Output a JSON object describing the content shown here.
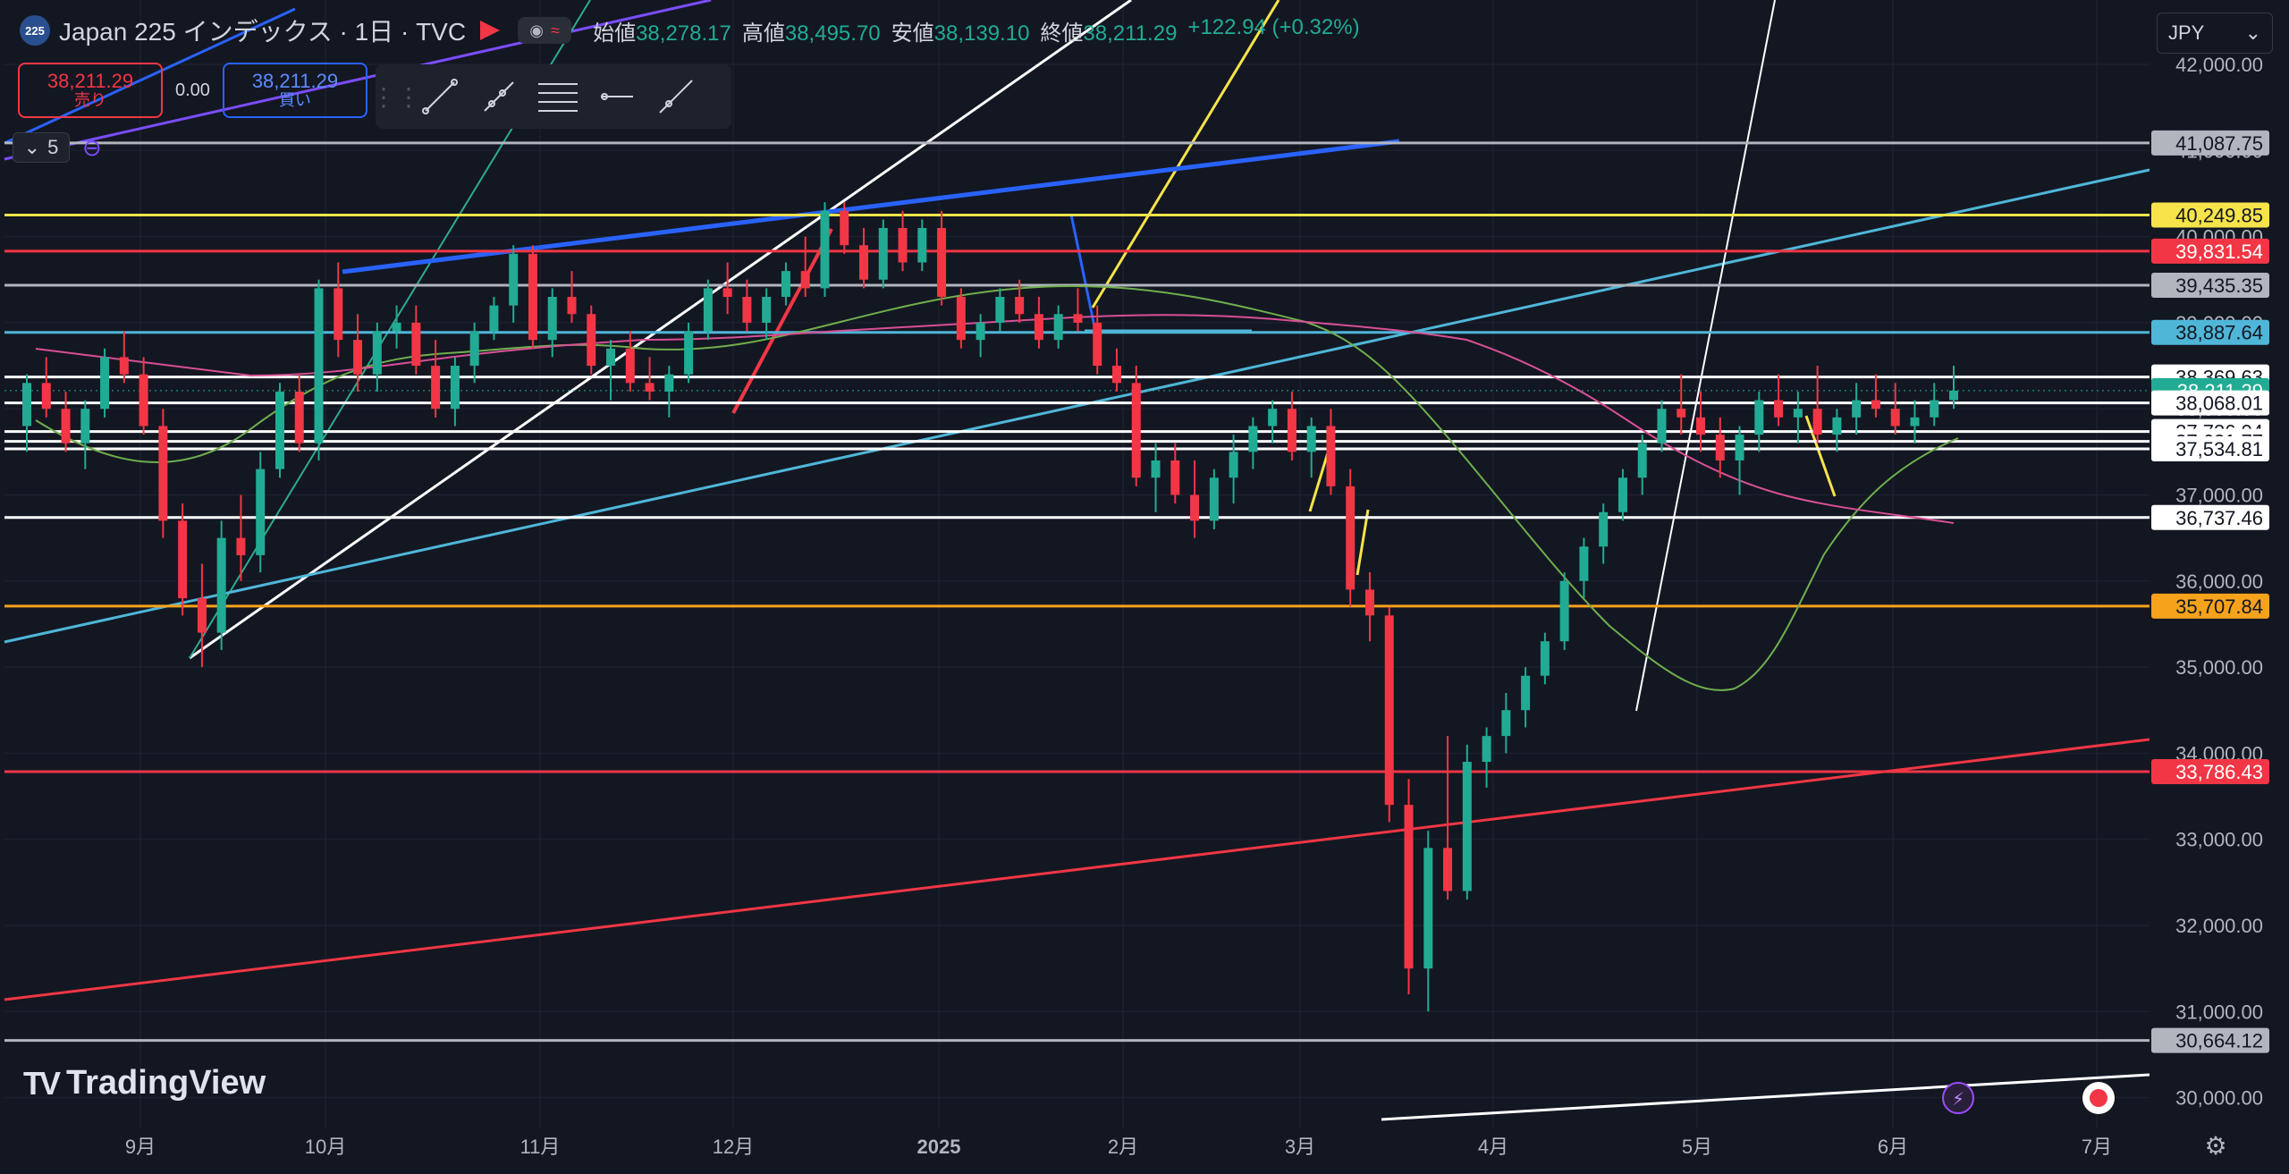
{
  "header": {
    "symbol_badge": "225",
    "title": "Japan 225 インデックス · 1日 · TVC",
    "ohlc": [
      {
        "label": "始値",
        "value": "38,278.17"
      },
      {
        "label": "高値",
        "value": "38,495.70"
      },
      {
        "label": "安値",
        "value": "38,139.10"
      },
      {
        "label": "終値",
        "value": "38,211.29"
      }
    ],
    "change": "+122.94 (+0.32%)"
  },
  "trade": {
    "sell_price": "38,211.29",
    "sell_label": "売り",
    "spread": "0.00",
    "buy_price": "38,211.29",
    "buy_label": "買い"
  },
  "indicators": {
    "count": "5"
  },
  "currency": {
    "selected": "JPY"
  },
  "branding": {
    "logo_text": "TradingView"
  },
  "colors": {
    "background": "#131722",
    "up": "#22ab94",
    "down": "#f23645",
    "grid": "#1f2433"
  },
  "chart_data": {
    "type": "candlestick",
    "x_ticks": [
      "9月",
      "10月",
      "11月",
      "12月",
      "2025",
      "2月",
      "3月",
      "4月",
      "5月",
      "6月",
      "7月"
    ],
    "y_ticks": [
      "42,000.00",
      "41,000.00",
      "40,000.00",
      "39,000.00",
      "38,000.00",
      "37,000.00",
      "36,000.00",
      "35,000.00",
      "34,000.00",
      "33,000.00",
      "32,000.00",
      "31,000.00",
      "30,000.00"
    ],
    "ylim": [
      29800,
      42100
    ],
    "last_price": "38,211.29",
    "horizontal_levels": [
      {
        "value": 41087.75,
        "label": "41,087.75",
        "color": "#b2b5be"
      },
      {
        "value": 40249.85,
        "label": "40,249.85",
        "color": "#f7e34a"
      },
      {
        "value": 39831.54,
        "label": "39,831.54",
        "color": "#f23645"
      },
      {
        "value": 39435.35,
        "label": "39,435.35",
        "color": "#b2b5be"
      },
      {
        "value": 38887.64,
        "label": "38,887.64",
        "color": "#4fb6d8"
      },
      {
        "value": 38369.63,
        "label": "38,369.63",
        "color": "#ffffff"
      },
      {
        "value": 38211.29,
        "label": "38,211.29",
        "color": "#22ab94"
      },
      {
        "value": 38068.01,
        "label": "38,068.01",
        "color": "#ffffff"
      },
      {
        "value": 37736.04,
        "label": "37,736.04",
        "color": "#ffffff"
      },
      {
        "value": 37621.77,
        "label": "37,621.77",
        "color": "#ffffff"
      },
      {
        "value": 37534.81,
        "label": "37,534.81",
        "color": "#ffffff"
      },
      {
        "value": 36737.46,
        "label": "36,737.46",
        "color": "#ffffff"
      },
      {
        "value": 35707.84,
        "label": "35,707.84",
        "color": "#f7a21b"
      },
      {
        "value": 33786.43,
        "label": "33,786.43",
        "color": "#f23645"
      },
      {
        "value": 30664.12,
        "label": "30,664.12",
        "color": "#b2b5be"
      }
    ],
    "candles": [
      [
        37800,
        38400,
        37500,
        38300
      ],
      [
        38300,
        38600,
        37900,
        38000
      ],
      [
        38000,
        38200,
        37500,
        37600
      ],
      [
        37600,
        38100,
        37300,
        38000
      ],
      [
        38000,
        38700,
        37900,
        38600
      ],
      [
        38600,
        38900,
        38300,
        38400
      ],
      [
        38400,
        38600,
        37700,
        37800
      ],
      [
        37800,
        38000,
        36500,
        36700
      ],
      [
        36700,
        36900,
        35600,
        35800
      ],
      [
        35800,
        36200,
        35000,
        35400
      ],
      [
        35400,
        36700,
        35200,
        36500
      ],
      [
        36500,
        37000,
        36000,
        36300
      ],
      [
        36300,
        37500,
        36100,
        37300
      ],
      [
        37300,
        38300,
        37200,
        38200
      ],
      [
        38200,
        38400,
        37500,
        37600
      ],
      [
        37600,
        39500,
        37400,
        39400
      ],
      [
        39400,
        39700,
        38600,
        38800
      ],
      [
        38800,
        39100,
        38200,
        38400
      ],
      [
        38400,
        39000,
        38200,
        38900
      ],
      [
        38900,
        39200,
        38700,
        39000
      ],
      [
        39000,
        39200,
        38400,
        38500
      ],
      [
        38500,
        38800,
        37900,
        38000
      ],
      [
        38000,
        38600,
        37800,
        38500
      ],
      [
        38500,
        39000,
        38300,
        38900
      ],
      [
        38900,
        39300,
        38800,
        39200
      ],
      [
        39200,
        39900,
        39000,
        39800
      ],
      [
        39800,
        39900,
        38700,
        38800
      ],
      [
        38800,
        39400,
        38600,
        39300
      ],
      [
        39300,
        39600,
        39000,
        39100
      ],
      [
        39100,
        39200,
        38400,
        38500
      ],
      [
        38500,
        38800,
        38100,
        38700
      ],
      [
        38700,
        38900,
        38200,
        38300
      ],
      [
        38300,
        38600,
        38100,
        38200
      ],
      [
        38200,
        38500,
        37900,
        38400
      ],
      [
        38400,
        39000,
        38300,
        38900
      ],
      [
        38900,
        39500,
        38800,
        39400
      ],
      [
        39400,
        39700,
        39100,
        39300
      ],
      [
        39300,
        39500,
        38900,
        39000
      ],
      [
        39000,
        39400,
        38800,
        39300
      ],
      [
        39300,
        39700,
        39200,
        39600
      ],
      [
        39600,
        40000,
        39300,
        39400
      ],
      [
        39400,
        40400,
        39300,
        40300
      ],
      [
        40300,
        40400,
        39800,
        39900
      ],
      [
        39900,
        40100,
        39400,
        39500
      ],
      [
        39500,
        40200,
        39400,
        40100
      ],
      [
        40100,
        40300,
        39600,
        39700
      ],
      [
        39700,
        40200,
        39600,
        40100
      ],
      [
        40100,
        40300,
        39200,
        39300
      ],
      [
        39300,
        39400,
        38700,
        38800
      ],
      [
        38800,
        39100,
        38600,
        39000
      ],
      [
        39000,
        39400,
        38900,
        39300
      ],
      [
        39300,
        39500,
        39000,
        39100
      ],
      [
        39100,
        39300,
        38700,
        38800
      ],
      [
        38800,
        39200,
        38700,
        39100
      ],
      [
        39100,
        39400,
        38900,
        39000
      ],
      [
        39000,
        39200,
        38400,
        38500
      ],
      [
        38500,
        38700,
        38200,
        38300
      ],
      [
        38300,
        38500,
        37100,
        37200
      ],
      [
        37200,
        37600,
        36800,
        37400
      ],
      [
        37400,
        37600,
        36900,
        37000
      ],
      [
        37000,
        37400,
        36500,
        36700
      ],
      [
        36700,
        37300,
        36600,
        37200
      ],
      [
        37200,
        37700,
        36900,
        37500
      ],
      [
        37500,
        37900,
        37300,
        37800
      ],
      [
        37800,
        38100,
        37600,
        38000
      ],
      [
        38000,
        38200,
        37400,
        37500
      ],
      [
        37500,
        37900,
        37200,
        37800
      ],
      [
        37800,
        38000,
        37000,
        37100
      ],
      [
        37100,
        37300,
        35700,
        35900
      ],
      [
        35900,
        36100,
        35300,
        35600
      ],
      [
        35600,
        35700,
        33200,
        33400
      ],
      [
        33400,
        33700,
        31200,
        31500
      ],
      [
        31500,
        33100,
        31000,
        32900
      ],
      [
        32900,
        34200,
        32300,
        32400
      ],
      [
        32400,
        34100,
        32300,
        33900
      ],
      [
        33900,
        34300,
        33600,
        34200
      ],
      [
        34200,
        34700,
        34000,
        34500
      ],
      [
        34500,
        35000,
        34300,
        34900
      ],
      [
        34900,
        35400,
        34800,
        35300
      ],
      [
        35300,
        36100,
        35200,
        36000
      ],
      [
        36000,
        36500,
        35800,
        36400
      ],
      [
        36400,
        36900,
        36200,
        36800
      ],
      [
        36800,
        37300,
        36700,
        37200
      ],
      [
        37200,
        37700,
        37000,
        37600
      ],
      [
        37600,
        38100,
        37500,
        38000
      ],
      [
        38000,
        38400,
        37700,
        37900
      ],
      [
        37900,
        38200,
        37500,
        37700
      ],
      [
        37700,
        37900,
        37200,
        37400
      ],
      [
        37400,
        37800,
        37000,
        37700
      ],
      [
        37700,
        38200,
        37500,
        38100
      ],
      [
        38100,
        38400,
        37800,
        37900
      ],
      [
        37900,
        38200,
        37600,
        38000
      ],
      [
        38000,
        38500,
        37600,
        37700
      ],
      [
        37700,
        38000,
        37500,
        37900
      ],
      [
        37900,
        38300,
        37700,
        38100
      ],
      [
        38100,
        38400,
        37900,
        38000
      ],
      [
        38000,
        38300,
        37700,
        37800
      ],
      [
        37800,
        38100,
        37600,
        37900
      ],
      [
        37900,
        38300,
        37800,
        38100
      ],
      [
        38100,
        38500,
        38000,
        38211
      ]
    ]
  }
}
